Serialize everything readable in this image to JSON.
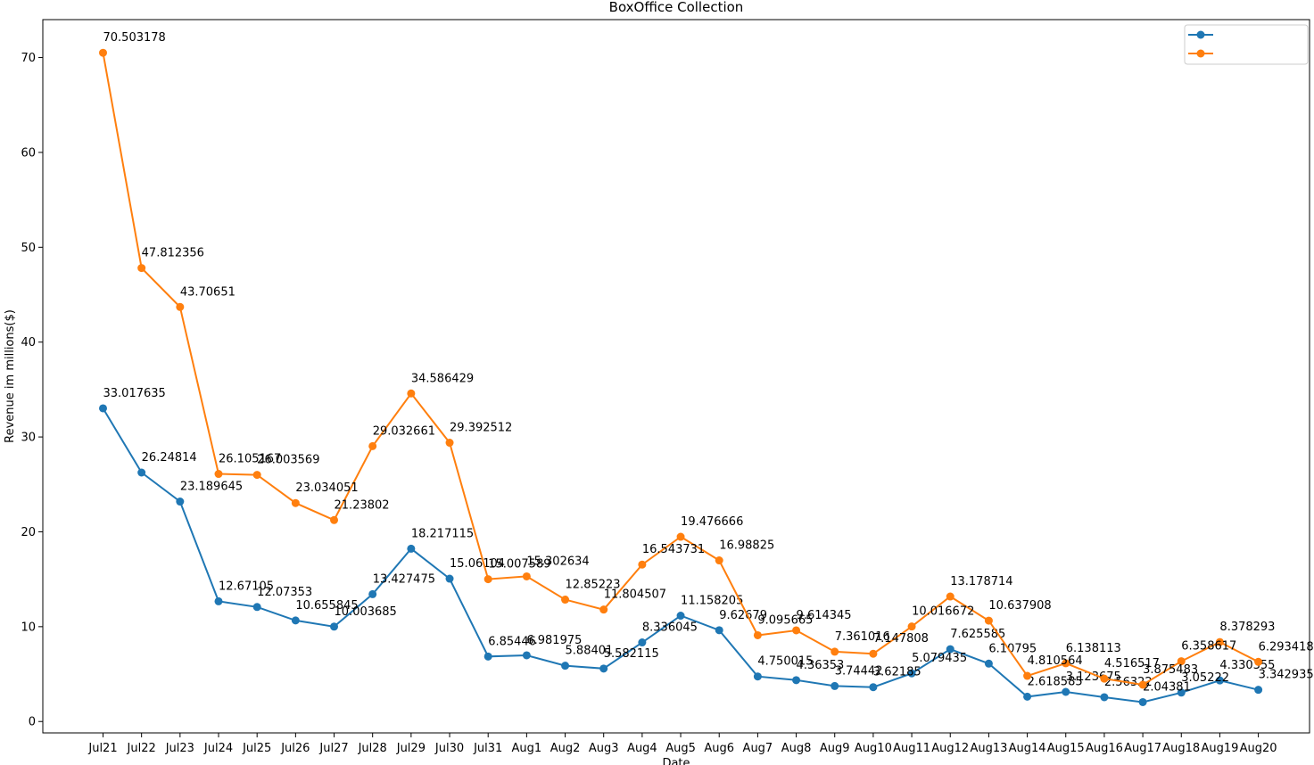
{
  "chart_data": {
    "type": "line",
    "title": "BoxOffice Collection",
    "xlabel": "Date",
    "ylabel": "Revenue im millions($)",
    "ylim": [
      -1.2,
      74.0
    ],
    "yticks": [
      0,
      10,
      20,
      30,
      40,
      50,
      60,
      70
    ],
    "grid": false,
    "legend_position": "top-right",
    "categories": [
      "Jul21",
      "Jul22",
      "Jul23",
      "Jul24",
      "Jul25",
      "Jul26",
      "Jul27",
      "Jul28",
      "Jul29",
      "Jul30",
      "Jul31",
      "Aug1",
      "Aug2",
      "Aug3",
      "Aug4",
      "Aug5",
      "Aug6",
      "Aug7",
      "Aug8",
      "Aug9",
      "Aug10",
      "Aug11",
      "Aug12",
      "Aug13",
      "Aug14",
      "Aug15",
      "Aug16",
      "Aug17",
      "Aug18",
      "Aug19",
      "Aug20"
    ],
    "series": [
      {
        "name": "",
        "color": "#1f77b4",
        "values": [
          33.017635,
          26.24814,
          23.189645,
          12.67105,
          12.07353,
          10.655845,
          10.003685,
          13.427475,
          18.217115,
          15.06104,
          6.85446,
          6.981975,
          5.88401,
          5.582115,
          8.336045,
          11.158205,
          9.62679,
          4.750015,
          4.36353,
          3.74442,
          3.62185,
          5.079435,
          7.625585,
          6.10795,
          2.618585,
          3.123675,
          2.56322,
          2.04381,
          3.05222,
          4.330355,
          3.342935
        ],
        "labels": [
          "33.017635",
          "26.24814",
          "23.189645",
          "12.67105",
          "12.07353",
          "10.655845",
          "10.003685",
          "13.427475",
          "18.217115",
          "15.06104",
          "6.85446",
          "6.981975",
          "5.88401",
          "5.582115",
          "8.336045",
          "11.158205",
          "9.62679",
          "4.750015",
          "4.36353",
          "3.74442",
          "3.62185",
          "5.079435",
          "7.625585",
          "6.10795",
          "2.618585",
          "3.123675",
          "2.56322",
          "2.04381",
          "3.05222",
          "4.330355",
          "3.342935"
        ]
      },
      {
        "name": "",
        "color": "#ff7f0e",
        "values": [
          70.503178,
          47.812356,
          43.70651,
          26.105167,
          26.003569,
          23.034051,
          21.23802,
          29.032661,
          34.586429,
          29.392512,
          15.007589,
          15.302634,
          12.85223,
          11.804507,
          16.543731,
          19.476666,
          16.98825,
          9.095665,
          9.614345,
          7.361016,
          7.147808,
          10.016672,
          13.178714,
          10.637908,
          4.810564,
          6.138113,
          4.516517,
          3.875483,
          6.358617,
          8.378293,
          6.293418
        ],
        "labels": [
          "70.503178",
          "47.812356",
          "43.70651",
          "26.105167",
          "26.003569",
          "23.034051",
          "21.23802",
          "29.032661",
          "34.586429",
          "29.392512",
          "15.007589",
          "15.302634",
          "12.85223",
          "11.804507",
          "16.543731",
          "19.476666",
          "16.98825",
          "9.095665",
          "9.614345",
          "7.361016",
          "7.147808",
          "10.016672",
          "13.178714",
          "10.637908",
          "4.810564",
          "6.138113",
          "4.516517",
          "3.875483",
          "6.358617",
          "8.378293",
          "6.293418"
        ]
      }
    ]
  }
}
